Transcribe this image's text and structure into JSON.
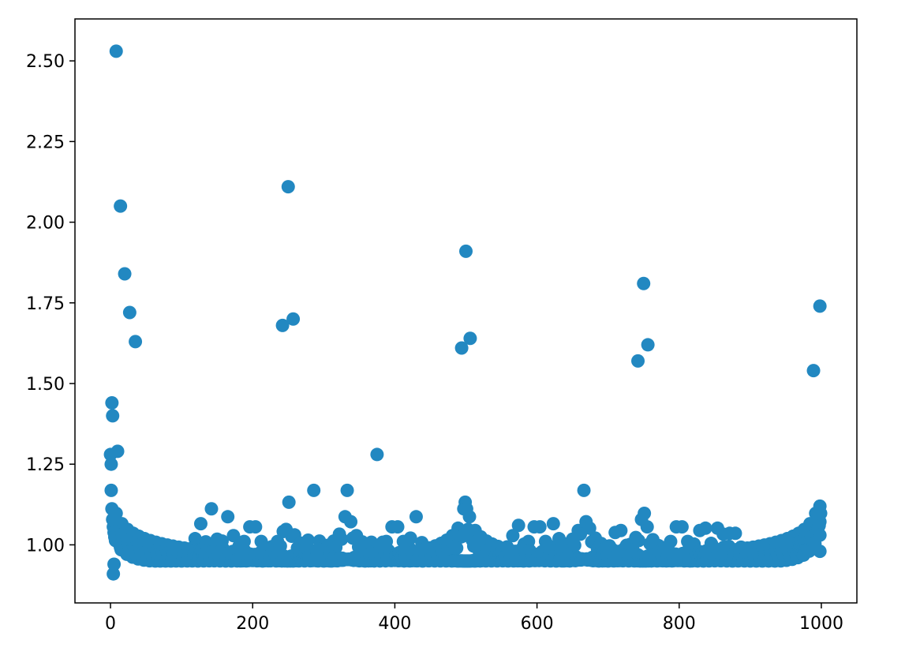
{
  "chart_data": {
    "type": "scatter",
    "title": "",
    "xlabel": "",
    "ylabel": "",
    "xlim": [
      -50,
      1050
    ],
    "ylim": [
      0.82,
      2.63
    ],
    "xticks": [
      0,
      200,
      400,
      600,
      800,
      1000
    ],
    "yticks": [
      1.0,
      1.25,
      1.5,
      1.75,
      2.0,
      2.25,
      2.5
    ],
    "xtick_labels": [
      "0",
      "200",
      "400",
      "600",
      "800",
      "1000"
    ],
    "ytick_labels": [
      "1.00",
      "1.25",
      "1.50",
      "1.75",
      "2.00",
      "2.25",
      "2.50"
    ],
    "grid": false,
    "legend": "none",
    "marker_color": "#2288c1",
    "n_points": 1000,
    "generator": "y = sum over k=1..8 of |sin(2*pi*k*x/1000)|^-0.1, scaled to [0.91, 2.53]",
    "notable_points": [
      {
        "x": 1,
        "y": 1.25
      },
      {
        "x": 2,
        "y": 1.44
      },
      {
        "x": 3,
        "y": 1.4
      },
      {
        "x": 4,
        "y": 0.91
      },
      {
        "x": 5,
        "y": 0.94
      },
      {
        "x": 6,
        "y": 1.08
      },
      {
        "x": 8,
        "y": 2.53
      },
      {
        "x": 10,
        "y": 1.29
      },
      {
        "x": 14,
        "y": 2.05
      },
      {
        "x": 20,
        "y": 1.84
      },
      {
        "x": 27,
        "y": 1.72
      },
      {
        "x": 35,
        "y": 1.63
      },
      {
        "x": 250,
        "y": 2.11
      },
      {
        "x": 242,
        "y": 1.68
      },
      {
        "x": 257,
        "y": 1.7
      },
      {
        "x": 500,
        "y": 1.91
      },
      {
        "x": 506,
        "y": 1.64
      },
      {
        "x": 494,
        "y": 1.61
      },
      {
        "x": 750,
        "y": 1.81
      },
      {
        "x": 756,
        "y": 1.62
      },
      {
        "x": 742,
        "y": 1.57
      },
      {
        "x": 998,
        "y": 1.74
      },
      {
        "x": 989,
        "y": 1.54
      },
      {
        "x": 998,
        "y": 1.12
      },
      {
        "x": 998,
        "y": 1.03
      },
      {
        "x": 998,
        "y": 0.98
      }
    ]
  }
}
